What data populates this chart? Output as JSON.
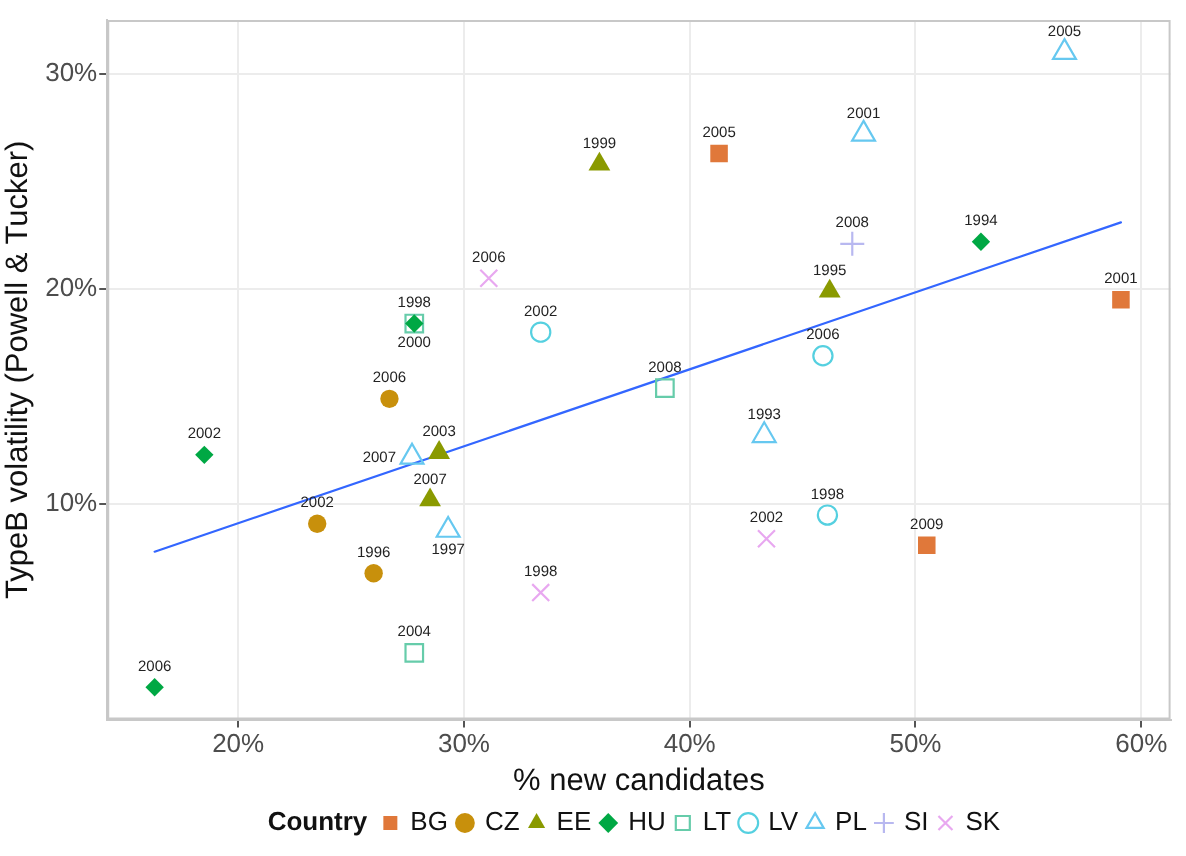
{
  "chart_data": {
    "type": "scatter",
    "xlabel": "% new candidates",
    "ylabel": "TypeB volatility (Powell & Tucker)",
    "legend_title": "Country",
    "xlim": [
      14.2,
      61.3
    ],
    "ylim": [
      0,
      32.5
    ],
    "xticks": [
      {
        "value": 20,
        "label": "20%"
      },
      {
        "value": 30,
        "label": "30%"
      },
      {
        "value": 40,
        "label": "40%"
      },
      {
        "value": 50,
        "label": "50%"
      },
      {
        "value": 60,
        "label": "60%"
      }
    ],
    "yticks": [
      {
        "value": 10,
        "label": "10%"
      },
      {
        "value": 20,
        "label": "20%"
      },
      {
        "value": 30,
        "label": "30%"
      }
    ],
    "grid": true,
    "legend": "bottom",
    "series": [
      {
        "name": "BG",
        "color": "#e0783a",
        "marker": "square",
        "x": [
          41.3,
          59.1,
          50.5
        ],
        "values": [
          26.3,
          19.5,
          8.1
        ]
      },
      {
        "name": "CZ",
        "color": "#c8900c",
        "marker": "circle",
        "x": [
          26.7,
          23.5,
          26.0
        ],
        "values": [
          14.9,
          9.1,
          6.8
        ]
      },
      {
        "name": "EE",
        "color": "#8a9a00",
        "marker": "triangle",
        "x": [
          36.0,
          46.2,
          28.9,
          28.5
        ],
        "values": [
          25.8,
          19.9,
          12.4,
          10.2
        ]
      },
      {
        "name": "HU",
        "color": "#00a844",
        "marker": "diamond",
        "x": [
          52.9,
          27.8,
          18.5,
          16.3
        ],
        "values": [
          22.2,
          18.4,
          12.3,
          1.5
        ]
      },
      {
        "name": "LT",
        "color": "#66ccaa",
        "marker": "square-open",
        "x": [
          38.9,
          27.8,
          27.8
        ],
        "values": [
          15.4,
          18.4,
          3.1
        ]
      },
      {
        "name": "LV",
        "color": "#55d0e0",
        "marker": "circle-open",
        "x": [
          33.4,
          45.9,
          46.1
        ],
        "values": [
          18.0,
          16.9,
          9.5
        ]
      },
      {
        "name": "PL",
        "color": "#66c8f0",
        "marker": "triangle-open",
        "x": [
          56.6,
          47.7,
          43.3,
          27.7,
          29.3
        ],
        "values": [
          31.0,
          27.2,
          13.2,
          12.2,
          8.8
        ]
      },
      {
        "name": "SI",
        "color": "#b8b8f0",
        "marker": "plus",
        "x": [
          47.2
        ],
        "values": [
          22.1
        ]
      },
      {
        "name": "SK",
        "color": "#e8a8f0",
        "marker": "cross",
        "x": [
          31.1,
          33.4,
          43.4
        ],
        "values": [
          20.5,
          5.9,
          8.4
        ]
      },
      {
        "type": "line",
        "color": "#3366ff",
        "marker": "none",
        "x": [
          16.3,
          59.1
        ],
        "values": [
          7.8,
          23.1
        ]
      }
    ],
    "annotations": [
      {
        "text": "2005",
        "x": 41.3,
        "y": 26.3
      },
      {
        "text": "2001",
        "x": 59.1,
        "y": 19.5
      },
      {
        "text": "2009",
        "x": 50.5,
        "y": 8.1
      },
      {
        "text": "2006",
        "x": 26.7,
        "y": 14.9
      },
      {
        "text": "2002",
        "x": 23.5,
        "y": 9.1
      },
      {
        "text": "1996",
        "x": 26.0,
        "y": 6.8
      },
      {
        "text": "1999",
        "x": 36.0,
        "y": 25.8
      },
      {
        "text": "1995",
        "x": 46.2,
        "y": 19.9
      },
      {
        "text": "2003",
        "x": 28.9,
        "y": 12.4
      },
      {
        "text": "2007",
        "x": 28.5,
        "y": 10.2
      },
      {
        "text": "1994",
        "x": 52.9,
        "y": 22.2
      },
      {
        "text": "1998",
        "x": 27.8,
        "y": 18.4
      },
      {
        "text": "2002",
        "x": 18.5,
        "y": 12.3
      },
      {
        "text": "2006",
        "x": 16.3,
        "y": 1.5
      },
      {
        "text": "2008",
        "x": 38.9,
        "y": 15.4
      },
      {
        "text": "2000",
        "x": 27.8,
        "y": 18.4
      },
      {
        "text": "2004",
        "x": 27.8,
        "y": 3.1
      },
      {
        "text": "2002",
        "x": 33.4,
        "y": 18.0
      },
      {
        "text": "2006",
        "x": 45.9,
        "y": 16.9
      },
      {
        "text": "1998",
        "x": 46.1,
        "y": 9.5
      },
      {
        "text": "2005",
        "x": 56.6,
        "y": 31.0
      },
      {
        "text": "2001",
        "x": 47.7,
        "y": 27.2
      },
      {
        "text": "1993",
        "x": 43.3,
        "y": 13.2
      },
      {
        "text": "2007",
        "x": 27.7,
        "y": 12.2
      },
      {
        "text": "1997",
        "x": 29.3,
        "y": 8.8
      },
      {
        "text": "2008",
        "x": 47.2,
        "y": 22.1
      },
      {
        "text": "2006",
        "x": 31.1,
        "y": 20.5
      },
      {
        "text": "1998",
        "x": 33.4,
        "y": 5.9
      },
      {
        "text": "2002",
        "x": 43.4,
        "y": 8.4
      }
    ]
  }
}
